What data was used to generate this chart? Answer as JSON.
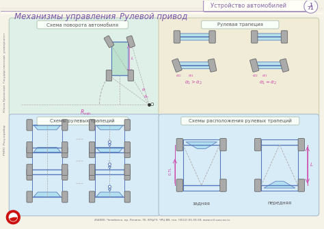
{
  "bg_color": "#f5f2e8",
  "panel1_bg": "#dff0e8",
  "panel2_bg": "#f0ecd8",
  "panel3_bg": "#d8ecf8",
  "panel4_bg": "#d8ecf8",
  "border_color": "#9988bb",
  "title_main_left": "Механизмы управления",
  "title_main_right": "Рулевой привод",
  "title_top_right": "Устройство автомобилей",
  "page_num_top": "1",
  "page_num_bot": "71",
  "box1_title": "Схема поворота автомобиля",
  "box2_title": "Рулевая трапеция",
  "box3_title": "Схемы рулевых трапеций",
  "box4_title": "Схемы расположения рулевых трапеций",
  "footer": "454080, Челябинск, пр. Ленина, 76, ЮУрГУ, ЧРЦ ВВ, тел. (3512) 65-59-59, www.cril.susu.ac.ru",
  "left_sidebar_top": "Южно-Уральский  Государственный  университет",
  "left_sidebar_bot": "РНПО  Росучприбор",
  "blue_line": "#5577bb",
  "cyan_fill": "#aaddee",
  "purple_text": "#8866aa",
  "pink_label": "#cc44aa",
  "wheel_color": "#aaaaaa",
  "wheel_edge": "#666666",
  "title_color": "#7755aa"
}
